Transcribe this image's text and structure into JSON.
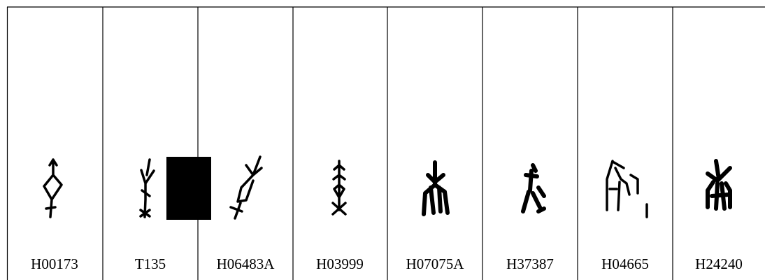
{
  "table": {
    "labels": [
      "H00173",
      "T135",
      "H06483A",
      "H03999",
      "H07075A",
      "H37387",
      "H04665",
      "H24240"
    ]
  }
}
